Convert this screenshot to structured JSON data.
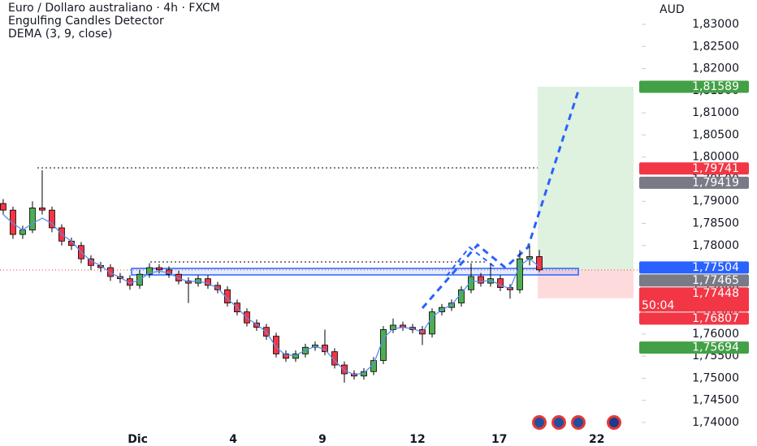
{
  "chart_data": {
    "type": "candlestick",
    "title": "Euro / Dollaro australiano · 4h · FXCM",
    "indicators": [
      "Engulfing Candles Detector"
    ],
    "currency": "AUD",
    "up_color": "#4caf50",
    "down_color": "#f23645",
    "ohlc": [
      [
        1.7895,
        1.7905,
        1.787,
        1.788
      ],
      [
        1.788,
        1.7888,
        1.7815,
        1.7825
      ],
      [
        1.7825,
        1.7845,
        1.7815,
        1.7835
      ],
      [
        1.7835,
        1.79,
        1.7828,
        1.7885
      ],
      [
        1.7885,
        1.797,
        1.787,
        1.788
      ],
      [
        1.788,
        1.7888,
        1.783,
        1.784
      ],
      [
        1.784,
        1.7848,
        1.78,
        1.781
      ],
      [
        1.781,
        1.7818,
        1.779,
        1.78
      ],
      [
        1.78,
        1.7808,
        1.776,
        1.777
      ],
      [
        1.777,
        1.7778,
        1.7745,
        1.7755
      ],
      [
        1.7755,
        1.7763,
        1.774,
        1.775
      ],
      [
        1.775,
        1.7758,
        1.772,
        1.773
      ],
      [
        1.773,
        1.7738,
        1.7715,
        1.7725
      ],
      [
        1.7725,
        1.7733,
        1.77,
        1.771
      ],
      [
        1.771,
        1.7745,
        1.7702,
        1.7735
      ],
      [
        1.7735,
        1.776,
        1.7727,
        1.775
      ],
      [
        1.775,
        1.7758,
        1.7737,
        1.7745
      ],
      [
        1.7745,
        1.7753,
        1.7727,
        1.7735
      ],
      [
        1.7735,
        1.7743,
        1.7712,
        1.772
      ],
      [
        1.772,
        1.7728,
        1.767,
        1.7715
      ],
      [
        1.7715,
        1.7733,
        1.7707,
        1.7725
      ],
      [
        1.7725,
        1.7733,
        1.7702,
        1.771
      ],
      [
        1.771,
        1.7718,
        1.7692,
        1.77
      ],
      [
        1.77,
        1.7708,
        1.7662,
        1.767
      ],
      [
        1.767,
        1.7678,
        1.7642,
        1.765
      ],
      [
        1.765,
        1.7658,
        1.7617,
        1.7625
      ],
      [
        1.7625,
        1.7633,
        1.7607,
        1.7615
      ],
      [
        1.7615,
        1.7623,
        1.7587,
        1.7595
      ],
      [
        1.7595,
        1.7603,
        1.7547,
        1.7555
      ],
      [
        1.7555,
        1.7563,
        1.7537,
        1.7545
      ],
      [
        1.7545,
        1.7563,
        1.7537,
        1.7555
      ],
      [
        1.7555,
        1.7578,
        1.7547,
        1.757
      ],
      [
        1.757,
        1.7583,
        1.7562,
        1.7575
      ],
      [
        1.7575,
        1.761,
        1.7552,
        1.756
      ],
      [
        1.756,
        1.7568,
        1.7522,
        1.753
      ],
      [
        1.753,
        1.7538,
        1.749,
        1.751
      ],
      [
        1.751,
        1.7518,
        1.7497,
        1.7505
      ],
      [
        1.7505,
        1.7523,
        1.7497,
        1.7515
      ],
      [
        1.7515,
        1.7548,
        1.7507,
        1.754
      ],
      [
        1.754,
        1.7618,
        1.7532,
        1.761
      ],
      [
        1.761,
        1.7635,
        1.7602,
        1.762
      ],
      [
        1.762,
        1.7628,
        1.7607,
        1.7615
      ],
      [
        1.7615,
        1.7623,
        1.7602,
        1.761
      ],
      [
        1.761,
        1.7618,
        1.7575,
        1.76
      ],
      [
        1.76,
        1.7658,
        1.7592,
        1.765
      ],
      [
        1.765,
        1.7668,
        1.7642,
        1.766
      ],
      [
        1.766,
        1.7678,
        1.7652,
        1.767
      ],
      [
        1.767,
        1.7708,
        1.7662,
        1.77
      ],
      [
        1.77,
        1.776,
        1.7692,
        1.773
      ],
      [
        1.773,
        1.7738,
        1.7707,
        1.7715
      ],
      [
        1.7715,
        1.776,
        1.7707,
        1.7725
      ],
      [
        1.7725,
        1.7733,
        1.7697,
        1.7705
      ],
      [
        1.7705,
        1.7713,
        1.768,
        1.77
      ],
      [
        1.77,
        1.779,
        1.7692,
        1.777
      ],
      [
        1.777,
        1.78,
        1.7755,
        1.7775
      ],
      [
        1.7775,
        1.779,
        1.774,
        1.7745
      ]
    ],
    "line": {
      "name": "DEMA (3, 9, close)",
      "color": "#5b8def",
      "values": [
        1.787,
        1.785,
        1.7835,
        1.785,
        1.7862,
        1.785,
        1.7825,
        1.781,
        1.7785,
        1.7765,
        1.7755,
        1.7738,
        1.7728,
        1.7715,
        1.7722,
        1.7738,
        1.7742,
        1.7738,
        1.7726,
        1.7718,
        1.772,
        1.7714,
        1.7704,
        1.768,
        1.766,
        1.7636,
        1.7622,
        1.7604,
        1.757,
        1.7552,
        1.7552,
        1.7563,
        1.7572,
        1.7565,
        1.754,
        1.7518,
        1.7508,
        1.7512,
        1.7532,
        1.759,
        1.7612,
        1.7615,
        1.7612,
        1.7604,
        1.7638,
        1.7655,
        1.7666,
        1.7692,
        1.772,
        1.7718,
        1.7722,
        1.771,
        1.7703,
        1.7755,
        1.777,
        1.7752
      ]
    },
    "xlim": [
      -0.33,
      65.5
    ],
    "xticks": [
      {
        "value": 13.8,
        "label": "Dic"
      },
      {
        "value": 23.6,
        "label": "4"
      },
      {
        "value": 32.75,
        "label": "9"
      },
      {
        "value": 42.5,
        "label": "12"
      },
      {
        "value": 50.9,
        "label": "17"
      },
      {
        "value": 60.9,
        "label": "22"
      }
    ],
    "ylim": [
      1.74,
      1.83
    ],
    "yticks": [
      {
        "value": 1.74,
        "label": "1,74000"
      },
      {
        "value": 1.745,
        "label": "1,74500"
      },
      {
        "value": 1.75,
        "label": "1,75000"
      },
      {
        "value": 1.755,
        "label": "1,75500"
      },
      {
        "value": 1.76,
        "label": "1,76000"
      },
      {
        "value": 1.765,
        "label": "1,76500"
      },
      {
        "value": 1.77,
        "label": "1,77000"
      },
      {
        "value": 1.775,
        "label": "1,77500"
      },
      {
        "value": 1.78,
        "label": "1,78000"
      },
      {
        "value": 1.785,
        "label": "1,78500"
      },
      {
        "value": 1.79,
        "label": "1,79000"
      },
      {
        "value": 1.795,
        "label": "1,79500"
      },
      {
        "value": 1.8,
        "label": "1,80000"
      },
      {
        "value": 1.805,
        "label": "1,80500"
      },
      {
        "value": 1.81,
        "label": "1,81000"
      },
      {
        "value": 1.815,
        "label": "1,81500"
      },
      {
        "value": 1.82,
        "label": "1,82000"
      },
      {
        "value": 1.825,
        "label": "1,82500"
      },
      {
        "value": 1.83,
        "label": "1,83000"
      }
    ],
    "price_labels": [
      {
        "value": 1.81589,
        "label": "1,81589",
        "color": "#43a047"
      },
      {
        "value": 1.79741,
        "label": "1,79741",
        "color": "#f23645"
      },
      {
        "value": 1.79419,
        "label": "1,79419",
        "color": "#787b86"
      },
      {
        "value": 1.77504,
        "label": "1,77504",
        "color": "#2962ff"
      },
      {
        "value": 1.77465,
        "label": "1,77465",
        "color": "#787b86"
      },
      {
        "value": 1.77448,
        "label": "1,77448",
        "color": "#f23645"
      },
      {
        "value": 1.76807,
        "label": "1,76807",
        "color": "#f23645"
      },
      {
        "value": 1.75694,
        "label": "1,75694",
        "color": "#43a047"
      }
    ],
    "countdown": "50:04"
  }
}
